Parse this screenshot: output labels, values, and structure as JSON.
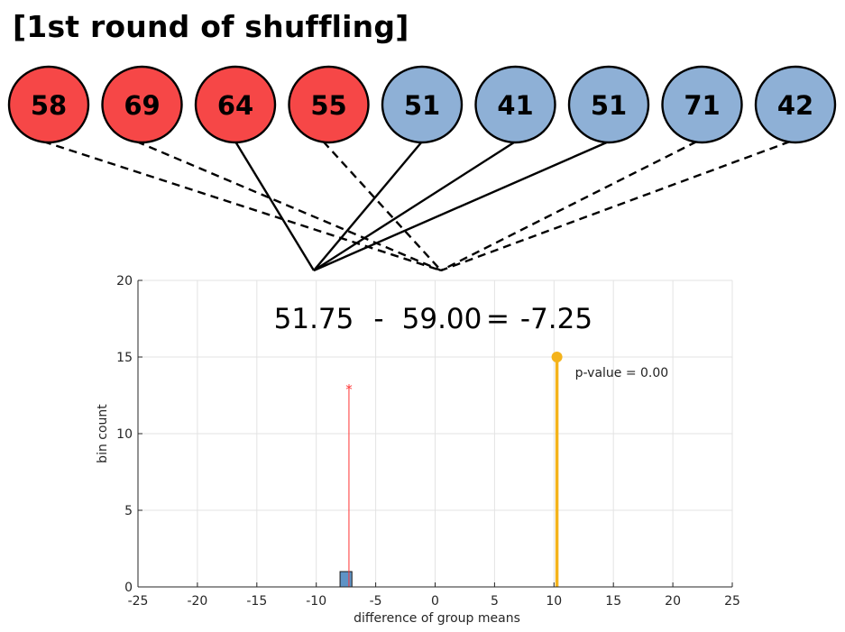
{
  "title": "[1st round of shuffling]",
  "colors": {
    "group_a": "#f64747",
    "group_b": "#8eb0d6",
    "histogram_bar": "#5e93c6",
    "observed_marker": "#f4b31b",
    "shuffled_marker": "#ff3333"
  },
  "balls": [
    {
      "value": "58",
      "group": "a",
      "line": "dashed",
      "target": "group-b-mean"
    },
    {
      "value": "69",
      "group": "a",
      "line": "dashed",
      "target": "group-b-mean"
    },
    {
      "value": "64",
      "group": "a",
      "line": "solid",
      "target": "group-a-mean"
    },
    {
      "value": "55",
      "group": "a",
      "line": "dashed",
      "target": "group-b-mean"
    },
    {
      "value": "51",
      "group": "b",
      "line": "solid",
      "target": "group-a-mean"
    },
    {
      "value": "41",
      "group": "b",
      "line": "solid",
      "target": "group-a-mean"
    },
    {
      "value": "51",
      "group": "b",
      "line": "solid",
      "target": "group-a-mean"
    },
    {
      "value": "71",
      "group": "b",
      "line": "dashed",
      "target": "group-b-mean"
    },
    {
      "value": "42",
      "group": "b",
      "line": "dashed",
      "target": "group-b-mean"
    }
  ],
  "chart_data": {
    "type": "bar",
    "xlabel": "difference of group means",
    "ylabel": "bin count",
    "xlim": [
      -25,
      25
    ],
    "ylim": [
      0,
      20
    ],
    "xticks": [
      -25,
      -20,
      -15,
      -10,
      -5,
      0,
      5,
      10,
      15,
      20,
      25
    ],
    "yticks": [
      0,
      5,
      10,
      15,
      20
    ],
    "grid": true,
    "equation": {
      "mean_a": "51.75",
      "minus": "-",
      "mean_b": "59.00",
      "equals": "=",
      "result": "-7.25"
    },
    "histogram": [
      {
        "bin_start": -8,
        "bin_end": -7,
        "count": 1
      }
    ],
    "shuffled_stem": {
      "x": -7.25,
      "y": 13,
      "marker": "*"
    },
    "observed_stem": {
      "x": 10.25,
      "y": 15,
      "marker": "o"
    },
    "p_value_label": "p-value = 0.00"
  }
}
